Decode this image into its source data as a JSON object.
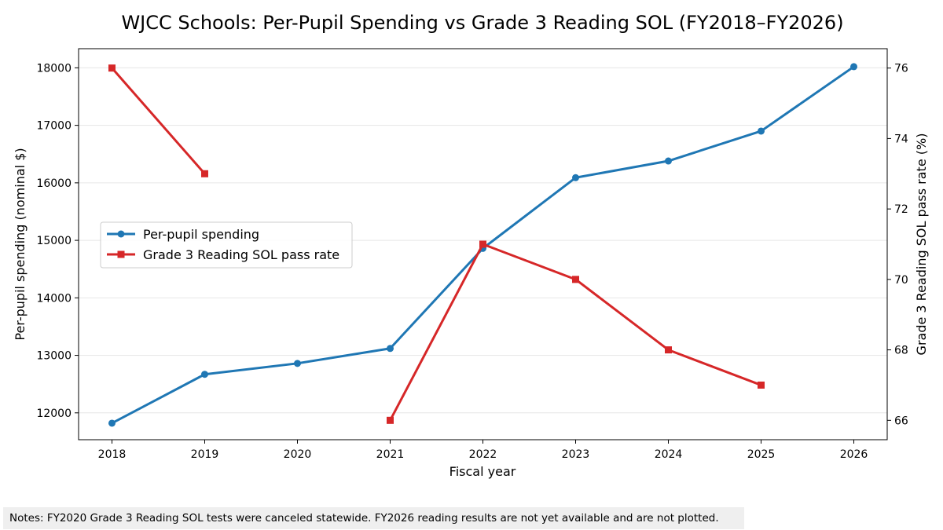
{
  "chart_data": {
    "type": "line",
    "title": "WJCC Schools: Per-Pupil Spending vs Grade 3 Reading SOL (FY2018–FY2026)",
    "xlabel": "Fiscal year",
    "ylabel": "Per-pupil spending (nominal $)",
    "ylabel_right": "Grade 3 Reading SOL pass rate (%)",
    "x": [
      2018,
      2019,
      2020,
      2021,
      2022,
      2023,
      2024,
      2025,
      2026
    ],
    "x_ticks": [
      "2018",
      "2019",
      "2020",
      "2021",
      "2022",
      "2023",
      "2024",
      "2025",
      "2026"
    ],
    "y_left_ticks": [
      12000,
      13000,
      14000,
      15000,
      16000,
      17000,
      18000
    ],
    "y_left_lim": [
      11533,
      18333
    ],
    "y_right_ticks": [
      66,
      68,
      70,
      72,
      74,
      76
    ],
    "y_right_lim": [
      65.45,
      76.55
    ],
    "grid": "horizontal",
    "legend_position": "center-left",
    "series": [
      {
        "name": "Per-pupil spending",
        "axis": "left",
        "color": "#1f77b4",
        "marker": "circle",
        "values": [
          11820,
          12670,
          12860,
          13120,
          14860,
          16090,
          16380,
          16900,
          18020
        ]
      },
      {
        "name": "Grade 3 Reading SOL pass rate",
        "axis": "right",
        "color": "#d62728",
        "marker": "square",
        "values": [
          76,
          73,
          null,
          66,
          71,
          70,
          68,
          67,
          null
        ]
      }
    ]
  },
  "notes": "Notes: FY2020 Grade 3 Reading SOL tests were canceled statewide. FY2026 reading results are not yet available and are not plotted."
}
